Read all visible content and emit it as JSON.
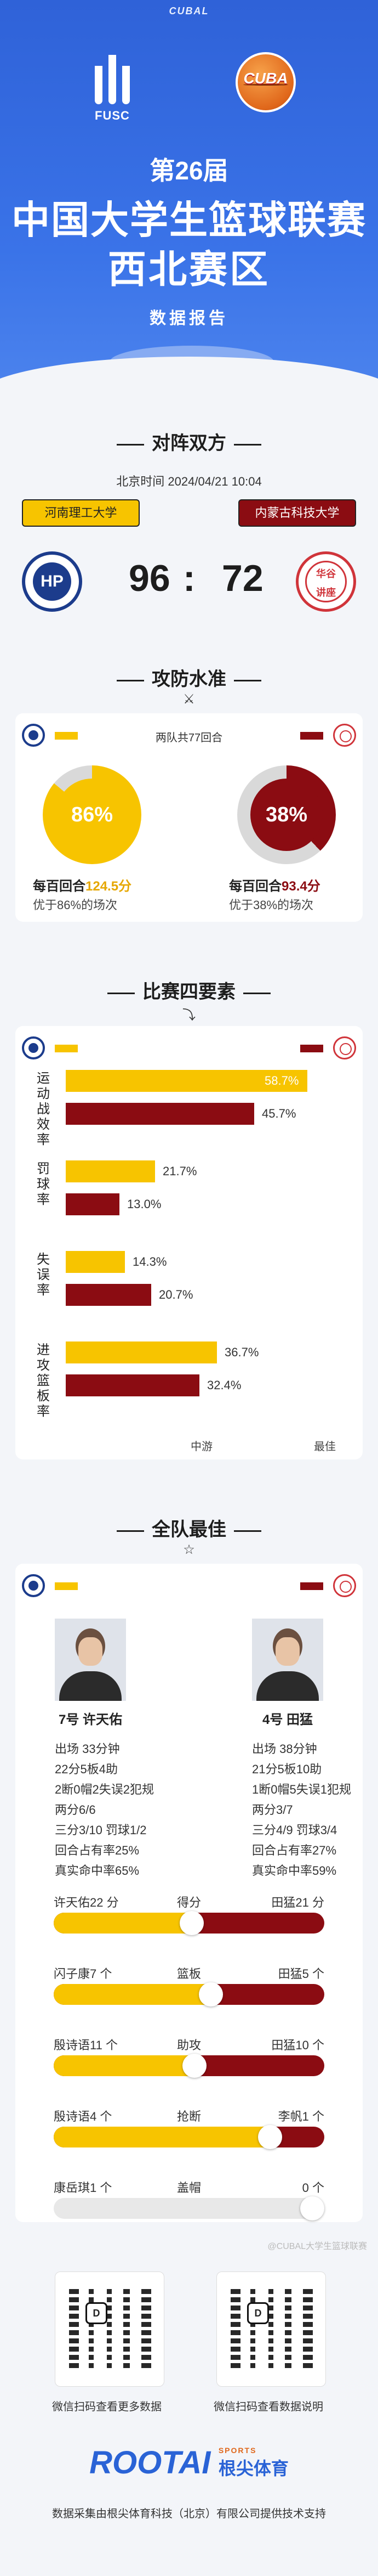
{
  "header": {
    "top_brand": "CUBAL",
    "fusc_label": "FUSC",
    "cuba_label": "CUBA",
    "season": "第26届",
    "title": "中国大学生篮球联赛",
    "subtitle": "西北赛区",
    "report": "数据报告"
  },
  "matchup": {
    "section_title": "对阵双方",
    "time": "北京时间 2024/04/21 10:04",
    "home_team": "河南理工大学",
    "away_team": "内蒙古科技大学",
    "home_logo_text": "HP",
    "away_logo_text": "华谷\n讲座",
    "home_score": "96",
    "colon": ":",
    "away_score": "72"
  },
  "efficiency": {
    "section_title": "攻防水准",
    "legend": "两队共77回合",
    "home_pct": 86,
    "away_pct": 38,
    "home_pct_label": "86%",
    "away_pct_label": "38%",
    "home_cap_prefix": "每百回合",
    "home_cap_value": "124.5分",
    "home_cap2": "优于86%的场次",
    "away_cap_prefix": "每百回合",
    "away_cap_value": "93.4分",
    "away_cap2": "优于38%的场次"
  },
  "four_factors": {
    "section_title": "比赛四要素",
    "axis_mid": "中游",
    "axis_max": "最佳",
    "rows": [
      {
        "label": "运动战效率",
        "home": 58.7,
        "home_label": "58.7%",
        "away": 45.7,
        "away_label": "45.7%"
      },
      {
        "label": "罚球率",
        "home": 21.7,
        "home_label": "21.7%",
        "away": 13.0,
        "away_label": "13.0%"
      },
      {
        "label": "失误率",
        "home": 14.3,
        "home_label": "14.3%",
        "away": 20.7,
        "away_label": "20.7%"
      },
      {
        "label": "进攻篮板率",
        "home": 36.7,
        "home_label": "36.7%",
        "away": 32.4,
        "away_label": "32.4%"
      }
    ]
  },
  "best": {
    "section_title": "全队最佳",
    "home_player": "7号 许天佑",
    "away_player": "4号 田猛",
    "home_stats": [
      "出场 33分钟",
      "22分5板4助",
      "2断0帽2失误2犯规",
      "两分6/6",
      "三分3/10 罚球1/2",
      "回合占有率25%",
      "真实命中率65%"
    ],
    "away_stats": [
      "出场 38分钟",
      "21分5板10助",
      "1断0帽5失误1犯规",
      "两分3/7",
      "三分4/9 罚球3/4",
      "回合占有率27%",
      "真实命中率59%"
    ],
    "compare": [
      {
        "left": "许天佑22 分",
        "center": "得分",
        "right": "田猛21 分",
        "share": 0.51,
        "empty": false
      },
      {
        "left": "闪子康7 个",
        "center": "篮板",
        "right": "田猛5 个",
        "share": 0.58,
        "empty": false
      },
      {
        "left": "殷诗语11 个",
        "center": "助攻",
        "right": "田猛10 个",
        "share": 0.52,
        "empty": false
      },
      {
        "left": "殷诗语4 个",
        "center": "抢断",
        "right": "李帆1 个",
        "share": 0.8,
        "empty": false
      },
      {
        "left": "康岳琪1 个",
        "center": "盖帽",
        "right": "0 个",
        "share": 1.0,
        "empty": true
      }
    ]
  },
  "footer": {
    "qr_left_caption": "微信扫码查看更多数据",
    "qr_right_caption": "微信扫码查看数据说明",
    "qr_logo": "D",
    "brand_big": "ROOTAI",
    "brand_sports": "SPORTS",
    "brand_cn": "根尖体育",
    "credit": "数据采集由根尖体育科技（北京）有限公司提供技术支持",
    "watermark": "@CUBAL大学生篮球联赛"
  },
  "colors": {
    "home": "#f7c400",
    "away": "#8b0c12",
    "header_blue": "#3a73e8"
  }
}
